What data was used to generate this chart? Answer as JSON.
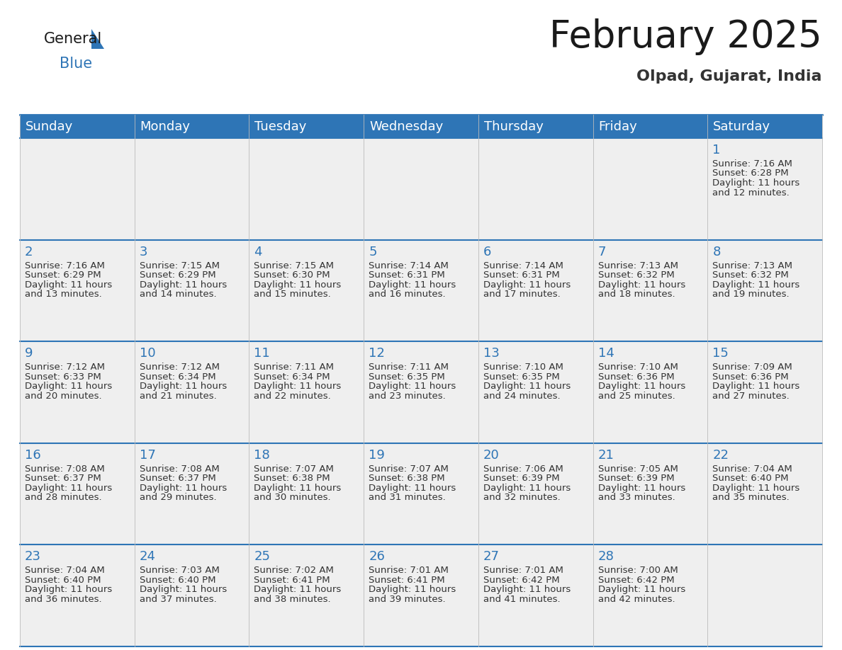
{
  "title": "February 2025",
  "subtitle": "Olpad, Gujarat, India",
  "header_bg_color": "#2e75b6",
  "header_text_color": "#ffffff",
  "cell_bg_color": "#eeeeee",
  "day_number_color": "#2e75b6",
  "text_color": "#333333",
  "line_color": "#2e75b6",
  "days_of_week": [
    "Sunday",
    "Monday",
    "Tuesday",
    "Wednesday",
    "Thursday",
    "Friday",
    "Saturday"
  ],
  "calendar_data": [
    [
      null,
      null,
      null,
      null,
      null,
      null,
      {
        "day": 1,
        "sunrise": "7:16 AM",
        "sunset": "6:28 PM",
        "daylight": "11 hours and 12 minutes"
      }
    ],
    [
      {
        "day": 2,
        "sunrise": "7:16 AM",
        "sunset": "6:29 PM",
        "daylight": "11 hours and 13 minutes"
      },
      {
        "day": 3,
        "sunrise": "7:15 AM",
        "sunset": "6:29 PM",
        "daylight": "11 hours and 14 minutes"
      },
      {
        "day": 4,
        "sunrise": "7:15 AM",
        "sunset": "6:30 PM",
        "daylight": "11 hours and 15 minutes"
      },
      {
        "day": 5,
        "sunrise": "7:14 AM",
        "sunset": "6:31 PM",
        "daylight": "11 hours and 16 minutes"
      },
      {
        "day": 6,
        "sunrise": "7:14 AM",
        "sunset": "6:31 PM",
        "daylight": "11 hours and 17 minutes"
      },
      {
        "day": 7,
        "sunrise": "7:13 AM",
        "sunset": "6:32 PM",
        "daylight": "11 hours and 18 minutes"
      },
      {
        "day": 8,
        "sunrise": "7:13 AM",
        "sunset": "6:32 PM",
        "daylight": "11 hours and 19 minutes"
      }
    ],
    [
      {
        "day": 9,
        "sunrise": "7:12 AM",
        "sunset": "6:33 PM",
        "daylight": "11 hours and 20 minutes"
      },
      {
        "day": 10,
        "sunrise": "7:12 AM",
        "sunset": "6:34 PM",
        "daylight": "11 hours and 21 minutes"
      },
      {
        "day": 11,
        "sunrise": "7:11 AM",
        "sunset": "6:34 PM",
        "daylight": "11 hours and 22 minutes"
      },
      {
        "day": 12,
        "sunrise": "7:11 AM",
        "sunset": "6:35 PM",
        "daylight": "11 hours and 23 minutes"
      },
      {
        "day": 13,
        "sunrise": "7:10 AM",
        "sunset": "6:35 PM",
        "daylight": "11 hours and 24 minutes"
      },
      {
        "day": 14,
        "sunrise": "7:10 AM",
        "sunset": "6:36 PM",
        "daylight": "11 hours and 25 minutes"
      },
      {
        "day": 15,
        "sunrise": "7:09 AM",
        "sunset": "6:36 PM",
        "daylight": "11 hours and 27 minutes"
      }
    ],
    [
      {
        "day": 16,
        "sunrise": "7:08 AM",
        "sunset": "6:37 PM",
        "daylight": "11 hours and 28 minutes"
      },
      {
        "day": 17,
        "sunrise": "7:08 AM",
        "sunset": "6:37 PM",
        "daylight": "11 hours and 29 minutes"
      },
      {
        "day": 18,
        "sunrise": "7:07 AM",
        "sunset": "6:38 PM",
        "daylight": "11 hours and 30 minutes"
      },
      {
        "day": 19,
        "sunrise": "7:07 AM",
        "sunset": "6:38 PM",
        "daylight": "11 hours and 31 minutes"
      },
      {
        "day": 20,
        "sunrise": "7:06 AM",
        "sunset": "6:39 PM",
        "daylight": "11 hours and 32 minutes"
      },
      {
        "day": 21,
        "sunrise": "7:05 AM",
        "sunset": "6:39 PM",
        "daylight": "11 hours and 33 minutes"
      },
      {
        "day": 22,
        "sunrise": "7:04 AM",
        "sunset": "6:40 PM",
        "daylight": "11 hours and 35 minutes"
      }
    ],
    [
      {
        "day": 23,
        "sunrise": "7:04 AM",
        "sunset": "6:40 PM",
        "daylight": "11 hours and 36 minutes"
      },
      {
        "day": 24,
        "sunrise": "7:03 AM",
        "sunset": "6:40 PM",
        "daylight": "11 hours and 37 minutes"
      },
      {
        "day": 25,
        "sunrise": "7:02 AM",
        "sunset": "6:41 PM",
        "daylight": "11 hours and 38 minutes"
      },
      {
        "day": 26,
        "sunrise": "7:01 AM",
        "sunset": "6:41 PM",
        "daylight": "11 hours and 39 minutes"
      },
      {
        "day": 27,
        "sunrise": "7:01 AM",
        "sunset": "6:42 PM",
        "daylight": "11 hours and 41 minutes"
      },
      {
        "day": 28,
        "sunrise": "7:00 AM",
        "sunset": "6:42 PM",
        "daylight": "11 hours and 42 minutes"
      },
      null
    ]
  ]
}
